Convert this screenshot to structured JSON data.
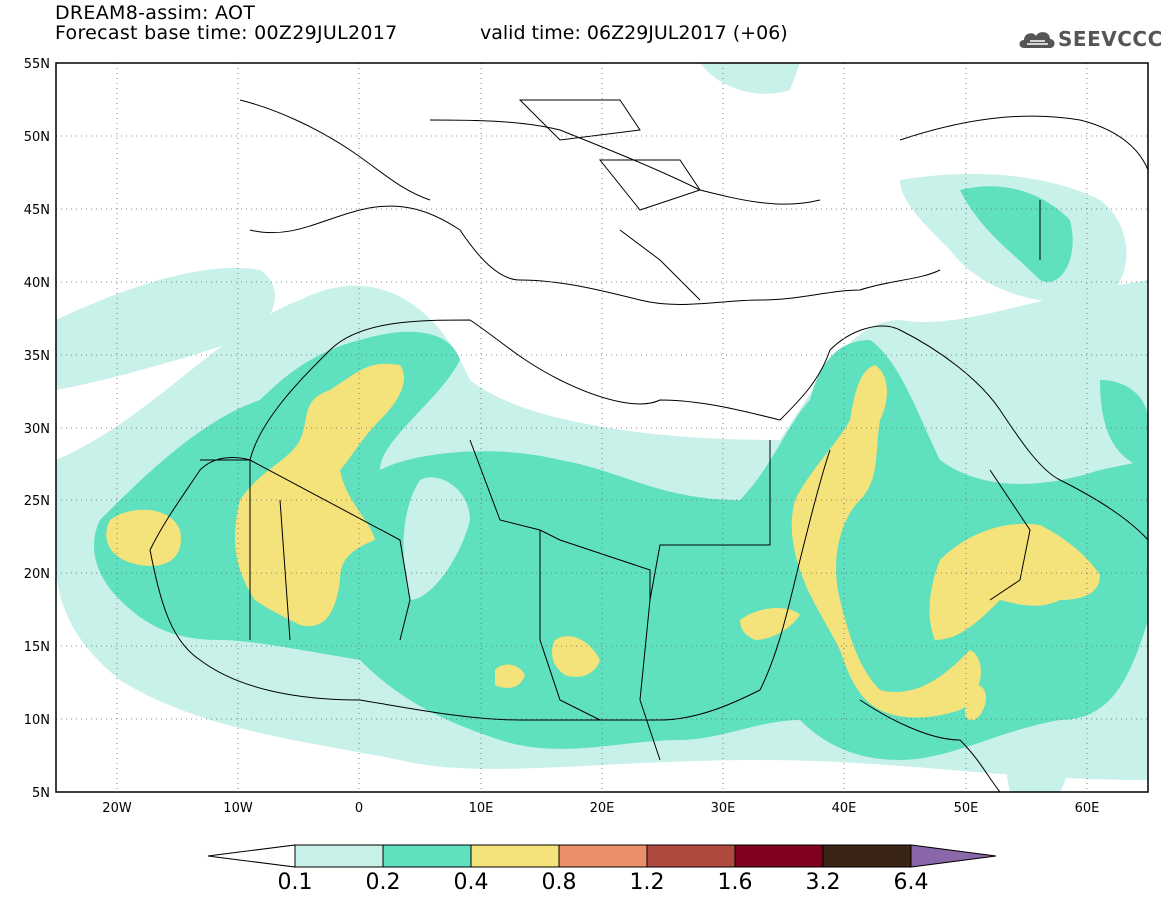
{
  "title": {
    "line1": "DREAM8-assim: AOT",
    "line2": "Forecast base time: 00Z29JUL2017",
    "valid": "valid time: 06Z29JUL2017 (+06)"
  },
  "logo": {
    "text": "SEEVCCC",
    "icon": "cloud-icon"
  },
  "axes": {
    "lat_labels": [
      "55N",
      "50N",
      "45N",
      "40N",
      "35N",
      "30N",
      "25N",
      "20N",
      "15N",
      "10N",
      "5N"
    ],
    "lat_values": [
      55,
      50,
      45,
      40,
      35,
      30,
      25,
      20,
      15,
      10,
      5
    ],
    "lon_labels": [
      "20W",
      "10W",
      "0",
      "10E",
      "20E",
      "30E",
      "40E",
      "50E",
      "60E"
    ],
    "lon_values": [
      -20,
      -10,
      0,
      10,
      20,
      30,
      40,
      50,
      60
    ],
    "lon_range": [
      -25,
      65
    ],
    "lat_range": [
      5,
      55
    ],
    "grid": "dotted"
  },
  "colorbar": {
    "labels": [
      "0.1",
      "0.2",
      "0.4",
      "0.8",
      "1.2",
      "1.6",
      "3.2",
      "6.4"
    ],
    "colors": [
      "#ffffff",
      "#c8f1ea",
      "#5fe0be",
      "#f4e27a",
      "#e9906a",
      "#b04a3e",
      "#800020",
      "#3a2416",
      "#8a67a8"
    ]
  },
  "fields": {
    "colors": {
      "low": "#c8f1ea",
      "mid": "#5fe0be",
      "high": "#f4e27a"
    }
  }
}
